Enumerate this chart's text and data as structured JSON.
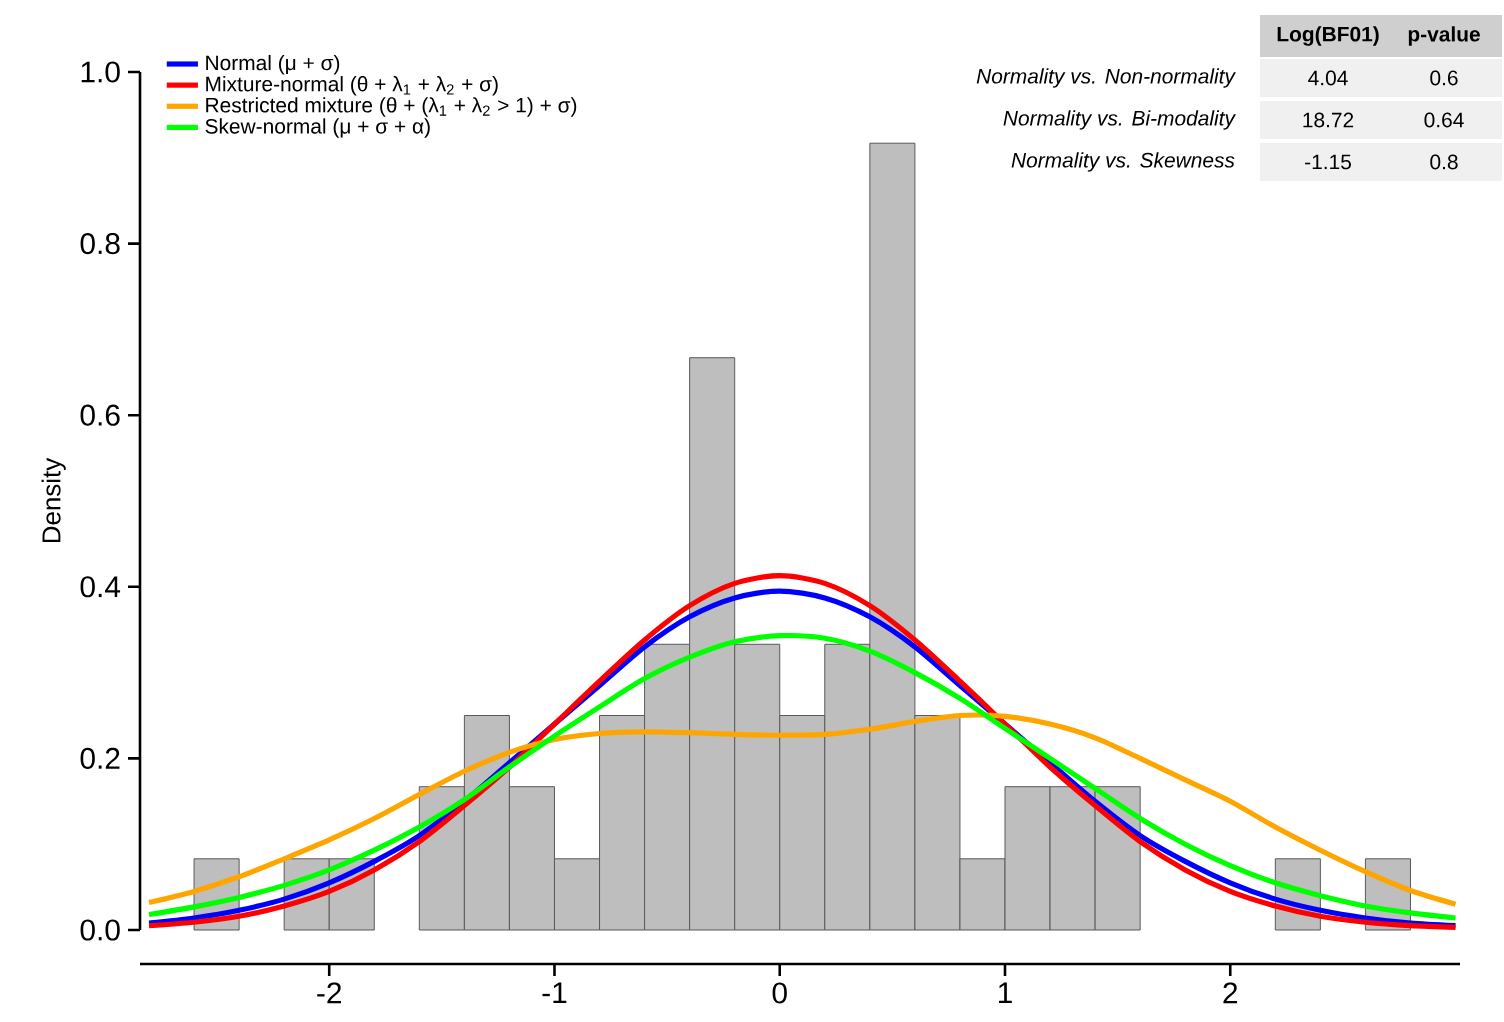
{
  "chart_data": {
    "type": "histogram",
    "ylabel": "Density",
    "color": "#bebebe",
    "bins": [
      -2.6,
      -2.4,
      -2.2,
      -2.0,
      -1.8,
      -1.6,
      -1.4,
      -1.2,
      -1.0,
      -0.8,
      -0.6,
      -0.4,
      -0.2,
      0.0,
      0.2,
      0.4,
      0.6,
      0.8,
      1.0,
      1.2,
      1.4,
      1.6,
      1.8,
      2.0,
      2.2,
      2.4,
      2.6,
      2.8
    ],
    "values": [
      0.083,
      0,
      0.083,
      0.083,
      0,
      0.167,
      0.25,
      0.167,
      0.083,
      0.25,
      0.333,
      0.667,
      0.333,
      0.25,
      0.333,
      0.917,
      0.25,
      0.083,
      0.167,
      0.167,
      0.167,
      0,
      0,
      0,
      0.083,
      0,
      0.083
    ],
    "series": [
      {
        "name": "Normal (μ + σ)",
        "color": "#0000ff",
        "type": "line",
        "x": [
          -2.8,
          -2.6,
          -2.4,
          -2.2,
          -2.0,
          -1.8,
          -1.6,
          -1.4,
          -1.2,
          -1.0,
          -0.8,
          -0.6,
          -0.4,
          -0.2,
          0,
          0.2,
          0.4,
          0.6,
          0.8,
          1.0,
          1.2,
          1.4,
          1.6,
          1.8,
          2.0,
          2.2,
          2.4,
          2.6,
          2.8,
          3.0
        ],
        "values": [
          0.008,
          0.014,
          0.023,
          0.036,
          0.055,
          0.08,
          0.11,
          0.15,
          0.195,
          0.24,
          0.285,
          0.33,
          0.365,
          0.387,
          0.395,
          0.387,
          0.365,
          0.33,
          0.285,
          0.24,
          0.195,
          0.15,
          0.11,
          0.08,
          0.055,
          0.036,
          0.023,
          0.014,
          0.008,
          0.005
        ]
      },
      {
        "name": "Mixture-normal (θ + λ$_{1}$ + λ$_{2}$ + σ)",
        "color": "#ff0000",
        "type": "line",
        "x": [
          -2.8,
          -2.6,
          -2.4,
          -2.2,
          -2.0,
          -1.8,
          -1.6,
          -1.4,
          -1.2,
          -1.0,
          -0.8,
          -0.6,
          -0.4,
          -0.2,
          0,
          0.2,
          0.4,
          0.6,
          0.8,
          1.0,
          1.2,
          1.4,
          1.6,
          1.8,
          2.0,
          2.2,
          2.4,
          2.6,
          2.8,
          3.0
        ],
        "values": [
          0.005,
          0.009,
          0.016,
          0.028,
          0.045,
          0.07,
          0.103,
          0.145,
          0.19,
          0.24,
          0.29,
          0.338,
          0.378,
          0.404,
          0.413,
          0.404,
          0.378,
          0.338,
          0.29,
          0.24,
          0.19,
          0.145,
          0.103,
          0.07,
          0.045,
          0.028,
          0.016,
          0.009,
          0.005,
          0.003
        ]
      },
      {
        "name": "Restricted mixture (θ + (λ$_{1}$ + λ$_{2}$ > 1) + σ)",
        "color": "#ffa500",
        "type": "line",
        "x": [
          -2.8,
          -2.6,
          -2.4,
          -2.2,
          -2.0,
          -1.8,
          -1.6,
          -1.4,
          -1.2,
          -1.0,
          -0.8,
          -0.6,
          -0.4,
          -0.2,
          0,
          0.2,
          0.4,
          0.6,
          0.8,
          1.0,
          1.2,
          1.4,
          1.6,
          1.8,
          2.0,
          2.2,
          2.4,
          2.6,
          2.8,
          3.0
        ],
        "values": [
          0.032,
          0.045,
          0.062,
          0.083,
          0.105,
          0.13,
          0.158,
          0.185,
          0.207,
          0.222,
          0.229,
          0.231,
          0.23,
          0.228,
          0.227,
          0.228,
          0.234,
          0.243,
          0.25,
          0.249,
          0.24,
          0.224,
          0.2,
          0.175,
          0.15,
          0.12,
          0.093,
          0.068,
          0.046,
          0.03
        ]
      },
      {
        "name": "Skew-normal (μ + σ + α)",
        "color": "#00ff00",
        "type": "line",
        "x": [
          -2.8,
          -2.6,
          -2.4,
          -2.2,
          -2.0,
          -1.8,
          -1.6,
          -1.4,
          -1.2,
          -1.0,
          -0.8,
          -0.6,
          -0.4,
          -0.2,
          0,
          0.2,
          0.4,
          0.6,
          0.8,
          1.0,
          1.2,
          1.4,
          1.6,
          1.8,
          2.0,
          2.2,
          2.4,
          2.6,
          2.8,
          3.0
        ],
        "values": [
          0.018,
          0.027,
          0.038,
          0.052,
          0.07,
          0.093,
          0.12,
          0.152,
          0.19,
          0.226,
          0.26,
          0.293,
          0.318,
          0.336,
          0.343,
          0.34,
          0.325,
          0.3,
          0.27,
          0.235,
          0.2,
          0.165,
          0.13,
          0.1,
          0.075,
          0.055,
          0.04,
          0.028,
          0.02,
          0.014
        ]
      }
    ],
    "xlim": [
      -2.84,
      3.02
    ],
    "xticks": [
      -2,
      -1,
      0,
      1,
      2
    ],
    "ylim": [
      0,
      1.0
    ],
    "yticks": [
      {
        "value": 0,
        "label": "0.0"
      },
      {
        "value": 0.2,
        "label": "0.2"
      },
      {
        "value": 0.4,
        "label": "0.4"
      },
      {
        "value": 0.6,
        "label": "0.6"
      },
      {
        "value": 0.8,
        "label": "0.8"
      },
      {
        "value": 1.0,
        "label": "1.0"
      }
    ],
    "legend": "top left",
    "marker": "none",
    "line_style": "solid",
    "annotations": [
      "Log(BF01)",
      "p-value",
      "Normality vs. Non-normality",
      "4.04",
      "0.6",
      "Normality vs. Bi-modality",
      "18.72",
      "0.64",
      "Normality vs. Skewness",
      "-1.15",
      "0.8"
    ]
  }
}
